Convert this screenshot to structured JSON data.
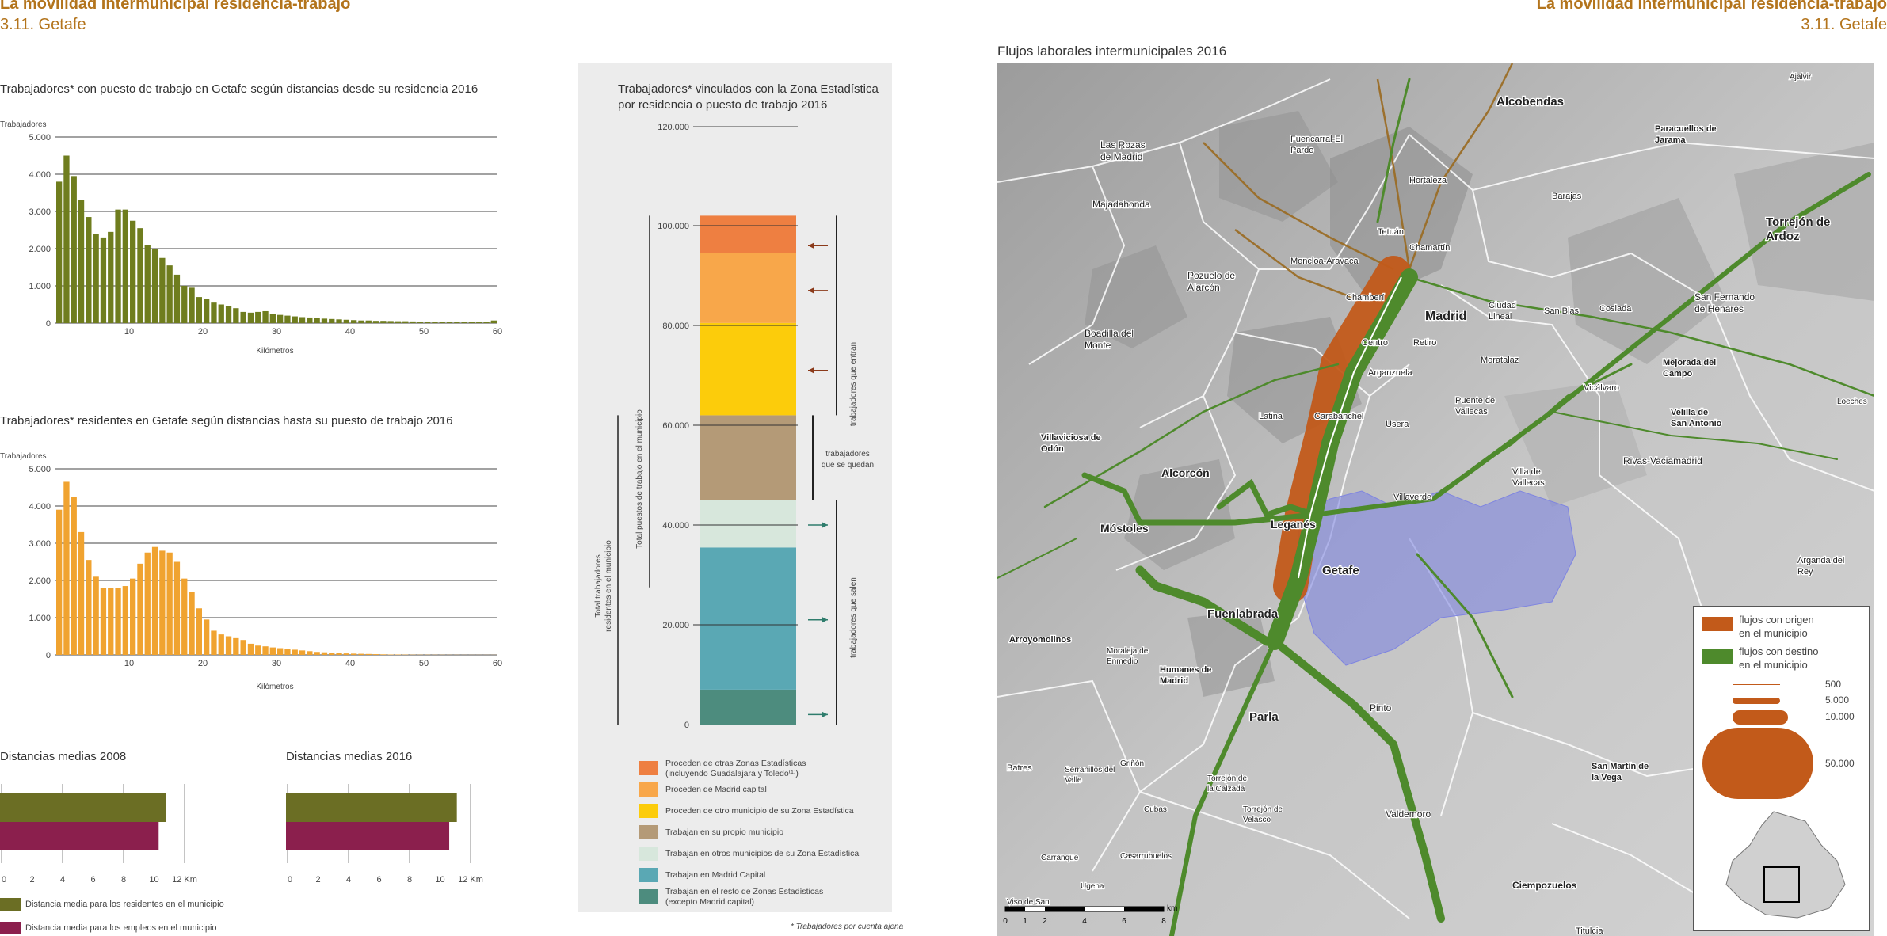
{
  "header": {
    "title_left": "La movilidad intermunicipal residencia-trabajo",
    "subtitle_left": "3.11. Getafe",
    "title_right": "La movilidad intermunicipal residencia-trabajo",
    "subtitle_right": "3.11. Getafe"
  },
  "chart1": {
    "title": "Trabajadores* con puesto de trabajo en Getafe según distancias desde su residencia 2016",
    "ylabel": "Trabajadores",
    "xlabel": "Kilómetros",
    "color": "#6f7d1e"
  },
  "chart2": {
    "title": "Trabajadores* residentes en Getafe según distancias hasta su puesto de trabajo 2016",
    "ylabel": "Trabajadores",
    "xlabel": "Kilómetros",
    "color": "#f0a330"
  },
  "dist2008": {
    "title": "Distancias medias 2008"
  },
  "dist2016": {
    "title": "Distancias medias 2016"
  },
  "dist_legend": {
    "residents": "Distancia media para los residentes en el municipio",
    "jobs": "Distancia media para los empleos en el municipio"
  },
  "stack": {
    "title1": "Trabajadores* vinculados con la Zona Estadística",
    "title2": "por residencia o puesto de trabajo 2016",
    "vlabel_total_jobs": "Total puestos de trabajo en el municipio",
    "vlabel_total_res_1": "Total trabajadores",
    "vlabel_total_res_2": "residentes en el municipio",
    "label_enter": "trabajadores que entran",
    "label_stay_1": "trabajadores",
    "label_stay_2": "que se quedan",
    "label_exit": "trabajadores que salen",
    "footnote": "* Trabajadores por cuenta ajena"
  },
  "chart_data": [
    {
      "type": "bar",
      "title": "Trabajadores* con puesto de trabajo en Getafe según distancias desde su residencia 2016",
      "ylabel": "Trabajadores",
      "xlabel": "Kilómetros",
      "ylim": [
        0,
        5000
      ],
      "yticks": [
        "0",
        "1.000",
        "2.000",
        "3.000",
        "4.000",
        "5.000"
      ],
      "xticks": [
        "10",
        "20",
        "30",
        "40",
        "50",
        "60"
      ],
      "x_range": [
        0,
        60
      ],
      "values": [
        3800,
        4500,
        3950,
        3300,
        2850,
        2400,
        2300,
        2450,
        3050,
        3050,
        2750,
        2550,
        2100,
        2000,
        1750,
        1550,
        1300,
        1000,
        950,
        700,
        650,
        550,
        500,
        450,
        400,
        300,
        280,
        300,
        320,
        250,
        220,
        200,
        180,
        160,
        150,
        140,
        120,
        110,
        100,
        90,
        80,
        70,
        70,
        60,
        60,
        55,
        50,
        50,
        45,
        40,
        40,
        35,
        35,
        30,
        30,
        30,
        25,
        25,
        25,
        70
      ]
    },
    {
      "type": "bar",
      "title": "Trabajadores* residentes en Getafe según distancias hasta su puesto de trabajo 2016",
      "ylabel": "Trabajadores",
      "xlabel": "Kilómetros",
      "ylim": [
        0,
        5000
      ],
      "yticks": [
        "0",
        "1.000",
        "2.000",
        "3.000",
        "4.000",
        "5.000"
      ],
      "xticks": [
        "10",
        "20",
        "30",
        "40",
        "50",
        "60"
      ],
      "x_range": [
        0,
        60
      ],
      "values": [
        3900,
        4650,
        4250,
        3300,
        2550,
        2100,
        1800,
        1800,
        1800,
        1850,
        2050,
        2450,
        2750,
        2900,
        2800,
        2750,
        2500,
        2050,
        1700,
        1250,
        950,
        650,
        550,
        500,
        450,
        400,
        300,
        250,
        230,
        200,
        180,
        160,
        140,
        120,
        100,
        80,
        70,
        60,
        50,
        40,
        35,
        30,
        25,
        20,
        15,
        10,
        10,
        8,
        6,
        5,
        5,
        4,
        4,
        3,
        3,
        2,
        2,
        2,
        2,
        2
      ]
    },
    {
      "type": "bar",
      "orientation": "horizontal",
      "title": "Distancias medias 2008",
      "xlim": [
        0,
        12
      ],
      "xticks": [
        "0",
        "2",
        "4",
        "6",
        "8",
        "10",
        "12 Km"
      ],
      "series": [
        {
          "name": "Distancia media para los residentes en el municipio",
          "values": [
            10.8
          ],
          "color": "#6b6e24"
        },
        {
          "name": "Distancia media para los empleos en el municipio",
          "values": [
            10.3
          ],
          "color": "#8b1f4d"
        }
      ]
    },
    {
      "type": "bar",
      "orientation": "horizontal",
      "title": "Distancias medias 2016",
      "xlim": [
        0,
        12
      ],
      "xticks": [
        "0",
        "2",
        "4",
        "6",
        "8",
        "10",
        "12 Km"
      ],
      "series": [
        {
          "name": "Distancia media para los residentes en el municipio",
          "values": [
            11.1
          ],
          "color": "#6b6e24"
        },
        {
          "name": "Distancia media para los empleos en el municipio",
          "values": [
            10.6
          ],
          "color": "#8b1f4d"
        }
      ]
    },
    {
      "type": "bar",
      "stacked": true,
      "title": "Trabajadores* vinculados con la Zona Estadística por residencia o puesto de trabajo 2016",
      "ylim": [
        0,
        120000
      ],
      "yticks": [
        "0",
        "20.000",
        "40.000",
        "60.000",
        "80.000",
        "100.000",
        "120.000"
      ],
      "segments": [
        {
          "name": "Trabajan en el resto de Zonas Estadísticas (excepto Madrid capital)",
          "value": 7000,
          "color": "#4d8c7e"
        },
        {
          "name": "Trabajan en Madrid Capital",
          "value": 28500,
          "color": "#5aa8b4"
        },
        {
          "name": "Trabajan en otros municipios de su Zona Estadística",
          "value": 9500,
          "color": "#d7e7dc"
        },
        {
          "name": "Trabajan en su propio municipio",
          "value": 17000,
          "color": "#b49a77"
        },
        {
          "name": "Proceden de otro municipio de su Zona Estadística",
          "value": 18500,
          "color": "#fccc0b"
        },
        {
          "name": "Proceden de Madrid capital",
          "value": 14000,
          "color": "#f8a74a"
        },
        {
          "name": "Proceden de otras Zonas Estadísticas (incluyendo Guadalajara y Toledo(1))",
          "value": 7500,
          "color": "#ee7f41"
        }
      ]
    }
  ],
  "stack_legend": [
    {
      "line1": "Proceden de otras Zonas Estadísticas",
      "line2": "(incluyendo Guadalajara y Toledo⁽¹⁾)",
      "color": "#ee7f41"
    },
    {
      "line1": "Proceden de Madrid capital",
      "line2": "",
      "color": "#f8a74a"
    },
    {
      "line1": "Proceden de otro municipio de su Zona Estadística",
      "line2": "",
      "color": "#fccc0b"
    },
    {
      "line1": "Trabajan en su propio municipio",
      "line2": "",
      "color": "#b49a77"
    },
    {
      "line1": "Trabajan en otros municipios de su Zona Estadística",
      "line2": "",
      "color": "#d7e7dc"
    },
    {
      "line1": "Trabajan en Madrid Capital",
      "line2": "",
      "color": "#5aa8b4"
    },
    {
      "line1": "Trabajan en el resto de Zonas Estadísticas",
      "line2": "(excepto Madrid capital)",
      "color": "#4d8c7e"
    }
  ],
  "map": {
    "title": "Flujos laborales intermunicipales 2016",
    "legend": {
      "origin_1": "flujos con origen",
      "origin_2": "en el municipio",
      "dest_1": "flujos con destino",
      "dest_2": "en el municipio",
      "origin_color": "#c25a1a",
      "dest_color": "#4e8a2c",
      "sizes": [
        "500",
        "5.000",
        "10.000",
        "50.000"
      ]
    },
    "scale": {
      "ticks": [
        "0",
        "1",
        "2",
        "4",
        "6",
        "8"
      ],
      "unit": "km"
    },
    "places": [
      {
        "name": "Ajalvir",
        "bold": false
      },
      {
        "name": "Alcobendas",
        "bold": true
      },
      {
        "name": "Paracuellos de Jarama",
        "bold": true
      },
      {
        "name": "Las Rozas de Madrid",
        "bold": false
      },
      {
        "name": "Fuencarral-El Pardo",
        "bold": false
      },
      {
        "name": "Hortaleza",
        "bold": false
      },
      {
        "name": "Barajas",
        "bold": false
      },
      {
        "name": "Majadahonda",
        "bold": false
      },
      {
        "name": "Tetuán",
        "bold": false
      },
      {
        "name": "Chamartín",
        "bold": false
      },
      {
        "name": "Torrejón de Ardoz",
        "bold": true
      },
      {
        "name": "Pozuelo de Alarcón",
        "bold": false
      },
      {
        "name": "Moncloa-Aravaca",
        "bold": false
      },
      {
        "name": "Chamberí",
        "bold": false
      },
      {
        "name": "Madrid",
        "bold": true
      },
      {
        "name": "Ciudad Lineal",
        "bold": false
      },
      {
        "name": "San Blas",
        "bold": false
      },
      {
        "name": "Coslada",
        "bold": false
      },
      {
        "name": "San Fernando de Henares",
        "bold": false
      },
      {
        "name": "Boadilla del Monte",
        "bold": false
      },
      {
        "name": "Centro",
        "bold": false
      },
      {
        "name": "Retiro",
        "bold": false
      },
      {
        "name": "Moratalaz",
        "bold": false
      },
      {
        "name": "Mejorada del Campo",
        "bold": true
      },
      {
        "name": "Arganzuela",
        "bold": false
      },
      {
        "name": "Latina",
        "bold": false
      },
      {
        "name": "Carabanchel",
        "bold": false
      },
      {
        "name": "Usera",
        "bold": false
      },
      {
        "name": "Puente de Vallecas",
        "bold": false
      },
      {
        "name": "Vicálvaro",
        "bold": false
      },
      {
        "name": "Loeches",
        "bold": false
      },
      {
        "name": "Velilla de San Antonio",
        "bold": true
      },
      {
        "name": "Villaviciosa de Odón",
        "bold": true
      },
      {
        "name": "Alcorcón",
        "bold": true
      },
      {
        "name": "Rivas-Vaciamadrid",
        "bold": false
      },
      {
        "name": "Villa de Vallecas",
        "bold": false
      },
      {
        "name": "Villaverde",
        "bold": false
      },
      {
        "name": "Leganés",
        "bold": true
      },
      {
        "name": "Móstoles",
        "bold": true
      },
      {
        "name": "Getafe",
        "bold": true
      },
      {
        "name": "Arganda del Rey",
        "bold": false
      },
      {
        "name": "Fuenlabrada",
        "bold": true
      },
      {
        "name": "Arroyomolinos",
        "bold": true
      },
      {
        "name": "Moraleja de Enmedio",
        "bold": false
      },
      {
        "name": "Humanes de Madrid",
        "bold": true
      },
      {
        "name": "Parla",
        "bold": true
      },
      {
        "name": "Pinto",
        "bold": false
      },
      {
        "name": "Batres",
        "bold": false
      },
      {
        "name": "Serranillos del Valle",
        "bold": false
      },
      {
        "name": "Griñón",
        "bold": false
      },
      {
        "name": "Torrejón de la Calzada",
        "bold": false
      },
      {
        "name": "San Martín de la Vega",
        "bold": true
      },
      {
        "name": "Cubas",
        "bold": false
      },
      {
        "name": "Torrejón de Velasco",
        "bold": false
      },
      {
        "name": "Valdemoro",
        "bold": false
      },
      {
        "name": "Carranque",
        "bold": false
      },
      {
        "name": "Casarrubuelos",
        "bold": false
      },
      {
        "name": "Ugena",
        "bold": false
      },
      {
        "name": "Ciempozuelos",
        "bold": true
      },
      {
        "name": "Viso de San",
        "bold": false
      },
      {
        "name": "Titulcia",
        "bold": false
      }
    ]
  }
}
